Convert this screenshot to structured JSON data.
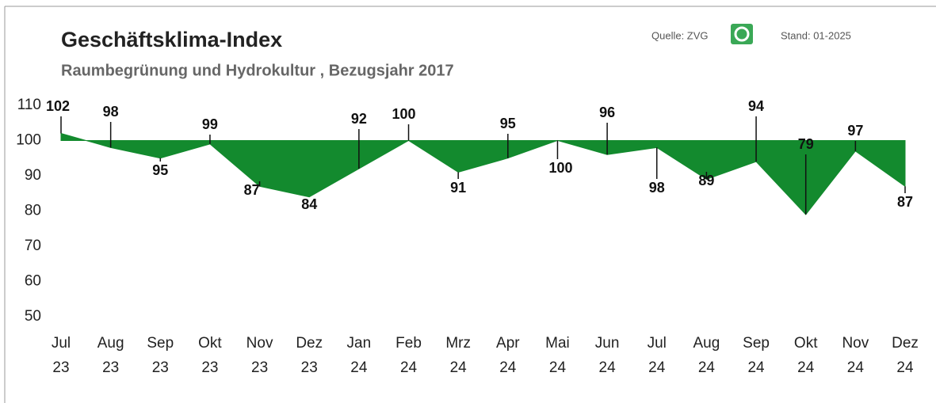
{
  "chart_data": {
    "type": "area",
    "title": "Geschäftsklima-Index",
    "subtitle": "Raumbegrünung und Hydrokultur , Bezugsjahr 2017",
    "source": "Quelle: ZVG",
    "date": "Stand: 01-2025",
    "categories": [
      "Jul 23",
      "Aug 23",
      "Sep 23",
      "Okt 23",
      "Nov 23",
      "Dez 23",
      "Jan 24",
      "Feb 24",
      "Mrz 24",
      "Apr 24",
      "Mai 24",
      "Jun 24",
      "Jul 24",
      "Aug 24",
      "Sep 24",
      "Okt 24",
      "Nov 24",
      "Dez 24"
    ],
    "values": [
      102,
      98,
      95,
      99,
      87,
      84,
      92,
      100,
      91,
      95,
      100,
      96,
      98,
      89,
      94,
      79,
      97,
      87
    ],
    "baseline": 100,
    "color": "#138a2e",
    "ylim": [
      48,
      112
    ],
    "yticks": [
      50,
      60,
      70,
      80,
      90,
      100,
      110
    ],
    "grid": false
  }
}
